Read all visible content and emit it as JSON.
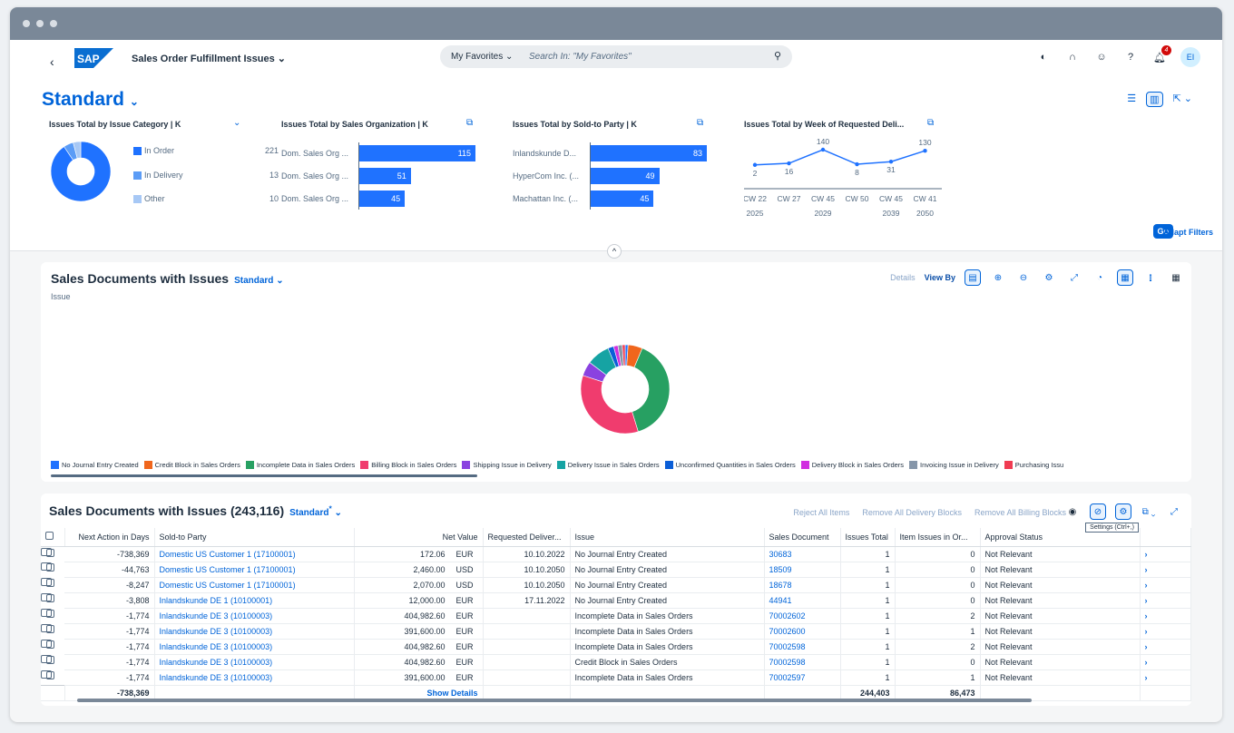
{
  "app": {
    "title": "Sales Order Fulfillment Issues",
    "logo_text": "SAP",
    "search_scope": "My Favorites",
    "search_placeholder": "Search In: \"My Favorites\"",
    "notification_count": "4",
    "user_initials": "EI"
  },
  "header": {
    "variant_title": "Standard",
    "go_label": "Go",
    "adapt_filters_label": "Adapt Filters",
    "cards": {
      "category": {
        "title": "Issues Total by Issue Category  | K",
        "items": [
          {
            "label": "In Order",
            "value": "221",
            "color": "#1f72ff"
          },
          {
            "label": "In Delivery",
            "value": "13",
            "color": "#5b9cf6"
          },
          {
            "label": "Other",
            "value": "10",
            "color": "#a7c8f5"
          }
        ]
      },
      "salesorg": {
        "title": "Issues Total by Sales Organization  | K",
        "items": [
          {
            "label": "Dom. Sales Org ...",
            "value": 115
          },
          {
            "label": "Dom. Sales Org ...",
            "value": 51
          },
          {
            "label": "Dom. Sales Org ...",
            "value": 45
          }
        ]
      },
      "soldto": {
        "title": "Issues Total by Sold-to Party  | K",
        "items": [
          {
            "label": "Inlandskunde D...",
            "value": 83
          },
          {
            "label": "HyperCom Inc. (...",
            "value": 49
          },
          {
            "label": "Machattan Inc. (...",
            "value": 45
          }
        ]
      },
      "week": {
        "title": "Issues Total by Week of Requested Deli...",
        "points": [
          {
            "week": "CW 22",
            "year": "2025",
            "value": 2
          },
          {
            "week": "CW 27",
            "year": "",
            "value": 16
          },
          {
            "week": "CW 45",
            "year": "2029",
            "value": 140
          },
          {
            "week": "CW 50",
            "year": "",
            "value": 8
          },
          {
            "week": "CW 45",
            "year": "2039",
            "value": 31
          },
          {
            "week": "CW 41",
            "year": "2050",
            "value": 130
          }
        ]
      }
    }
  },
  "chart_panel": {
    "title": "Sales Documents with Issues",
    "variant": "Standard",
    "details_label": "Details",
    "view_by_label": "View By",
    "dimension_label": "Issue"
  },
  "chart_data": {
    "type": "pie",
    "categories": [
      "No Journal Entry Created",
      "Credit Block in Sales Orders",
      "Incomplete Data in Sales Orders",
      "Billing Block in Sales Orders",
      "Shipping Issue in Delivery",
      "Delivery Issue in Sales Orders",
      "Unconfirmed Quantities in Sales Orders",
      "Delivery Block in Sales Orders",
      "Invoicing Issue in Delivery",
      "Purchasing Issu"
    ],
    "values": [
      1,
      5,
      37,
      33,
      5,
      8,
      2,
      1.5,
      1.5,
      1
    ],
    "colors": [
      "#1f72ff",
      "#f0661c",
      "#27a062",
      "#f03c6e",
      "#8a42e0",
      "#16a3a3",
      "#0b5ed7",
      "#d12ee0",
      "#8696a9",
      "#f03c52"
    ]
  },
  "table_panel": {
    "title": "Sales Documents with Issues (243,116)",
    "variant": "Standard",
    "variant_marker": "*",
    "actions": [
      "Reject All Items",
      "Remove All Delivery Blocks",
      "Remove All Billing Blocks"
    ],
    "tooltip": "Settings (Ctrl+,)",
    "columns": [
      "Next Action in Days",
      "Sold-to Party",
      "Net Value",
      "Requested Deliver...",
      "Issue",
      "Sales Document",
      "Issues Total",
      "Item Issues in Or...",
      "Approval Status"
    ],
    "rows": [
      {
        "days": "-738,369",
        "party": "Domestic US Customer 1 (17100001)",
        "net": "172.06",
        "cur": "EUR",
        "date": "10.10.2022",
        "issue": "No Journal Entry Created",
        "doc": "30683",
        "total": "1",
        "item": "0",
        "status": "Not Relevant"
      },
      {
        "days": "-44,763",
        "party": "Domestic US Customer 1 (17100001)",
        "net": "2,460.00",
        "cur": "USD",
        "date": "10.10.2050",
        "issue": "No Journal Entry Created",
        "doc": "18509",
        "total": "1",
        "item": "0",
        "status": "Not Relevant"
      },
      {
        "days": "-8,247",
        "party": "Domestic US Customer 1 (17100001)",
        "net": "2,070.00",
        "cur": "USD",
        "date": "10.10.2050",
        "issue": "No Journal Entry Created",
        "doc": "18678",
        "total": "1",
        "item": "0",
        "status": "Not Relevant"
      },
      {
        "days": "-3,808",
        "party": "Inlandskunde DE 1 (10100001)",
        "net": "12,000.00",
        "cur": "EUR",
        "date": "17.11.2022",
        "issue": "No Journal Entry Created",
        "doc": "44941",
        "total": "1",
        "item": "0",
        "status": "Not Relevant"
      },
      {
        "days": "-1,774",
        "party": "Inlandskunde DE 3 (10100003)",
        "net": "404,982.60",
        "cur": "EUR",
        "date": "",
        "issue": "Incomplete Data in Sales Orders",
        "doc": "70002602",
        "total": "1",
        "item": "2",
        "status": "Not Relevant"
      },
      {
        "days": "-1,774",
        "party": "Inlandskunde DE 3 (10100003)",
        "net": "391,600.00",
        "cur": "EUR",
        "date": "",
        "issue": "Incomplete Data in Sales Orders",
        "doc": "70002600",
        "total": "1",
        "item": "1",
        "status": "Not Relevant"
      },
      {
        "days": "-1,774",
        "party": "Inlandskunde DE 3 (10100003)",
        "net": "404,982.60",
        "cur": "EUR",
        "date": "",
        "issue": "Incomplete Data in Sales Orders",
        "doc": "70002598",
        "total": "1",
        "item": "2",
        "status": "Not Relevant"
      },
      {
        "days": "-1,774",
        "party": "Inlandskunde DE 3 (10100003)",
        "net": "404,982.60",
        "cur": "EUR",
        "date": "",
        "issue": "Credit Block in Sales Orders",
        "doc": "70002598",
        "total": "1",
        "item": "0",
        "status": "Not Relevant"
      },
      {
        "days": "-1,774",
        "party": "Inlandskunde DE 3 (10100003)",
        "net": "391,600.00",
        "cur": "EUR",
        "date": "",
        "issue": "Incomplete Data in Sales Orders",
        "doc": "70002597",
        "total": "1",
        "item": "1",
        "status": "Not Relevant"
      }
    ],
    "totals": {
      "days": "-738,369",
      "show_details": "Show Details",
      "issues_total": "244,403",
      "item_issues": "86,473"
    }
  }
}
